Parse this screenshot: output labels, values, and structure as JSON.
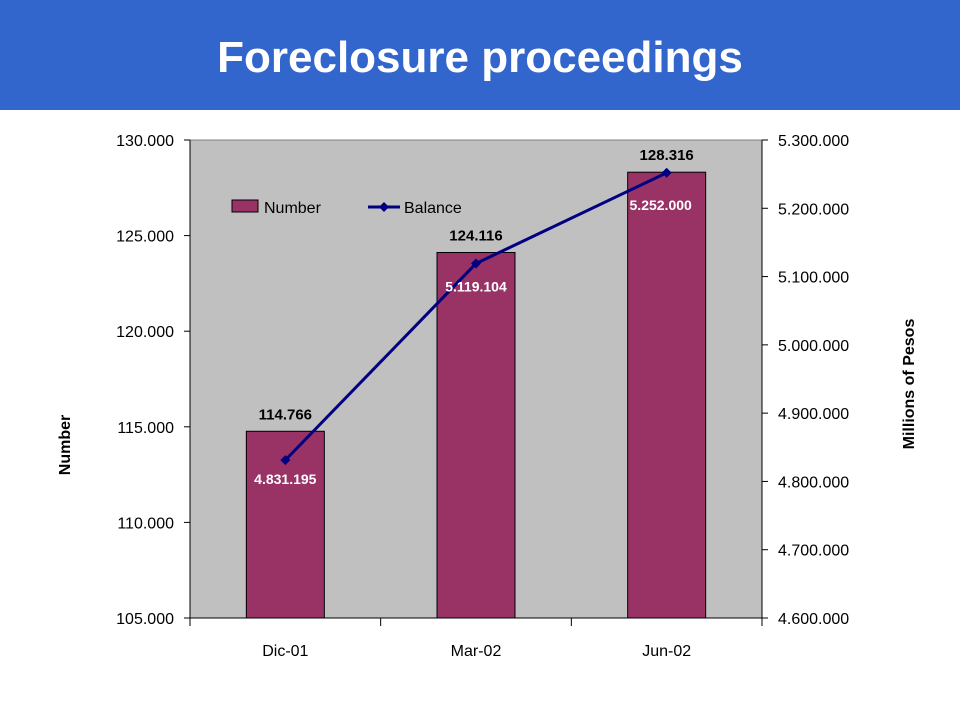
{
  "slide": {
    "title": "Foreclosure proceedings",
    "title_bar_color": "#3366CC"
  },
  "chart_data": {
    "type": "bar",
    "categories": [
      "Dic-01",
      "Mar-02",
      "Jun-02"
    ],
    "series": [
      {
        "name": "Number",
        "type": "bar",
        "axis": "left",
        "values": [
          114766,
          124116,
          128316
        ],
        "labels": [
          "114.766",
          "124.116",
          "128.316"
        ],
        "color": "#993366"
      },
      {
        "name": "Balance",
        "type": "line",
        "axis": "right",
        "values": [
          4831195,
          5119104,
          5252000
        ],
        "labels": [
          "4.831.195",
          "5.119.104",
          "5.252.000"
        ],
        "color": "#000080"
      }
    ],
    "ylabel": "Number",
    "y2label": "Millions of Pesos",
    "ylim": [
      105000,
      130000
    ],
    "y_ticks": [
      "105.000",
      "110.000",
      "115.000",
      "120.000",
      "125.000",
      "130.000"
    ],
    "y2lim": [
      4600000,
      5300000
    ],
    "y2_ticks": [
      "4.600.000",
      "4.700.000",
      "4.800.000",
      "4.900.000",
      "5.000.000",
      "5.100.000",
      "5.200.000",
      "5.300.000"
    ],
    "plot_background": "#C0C0C0",
    "grid": false,
    "legend": {
      "placement": "top-left",
      "entries": [
        "Number",
        "Balance"
      ]
    }
  }
}
